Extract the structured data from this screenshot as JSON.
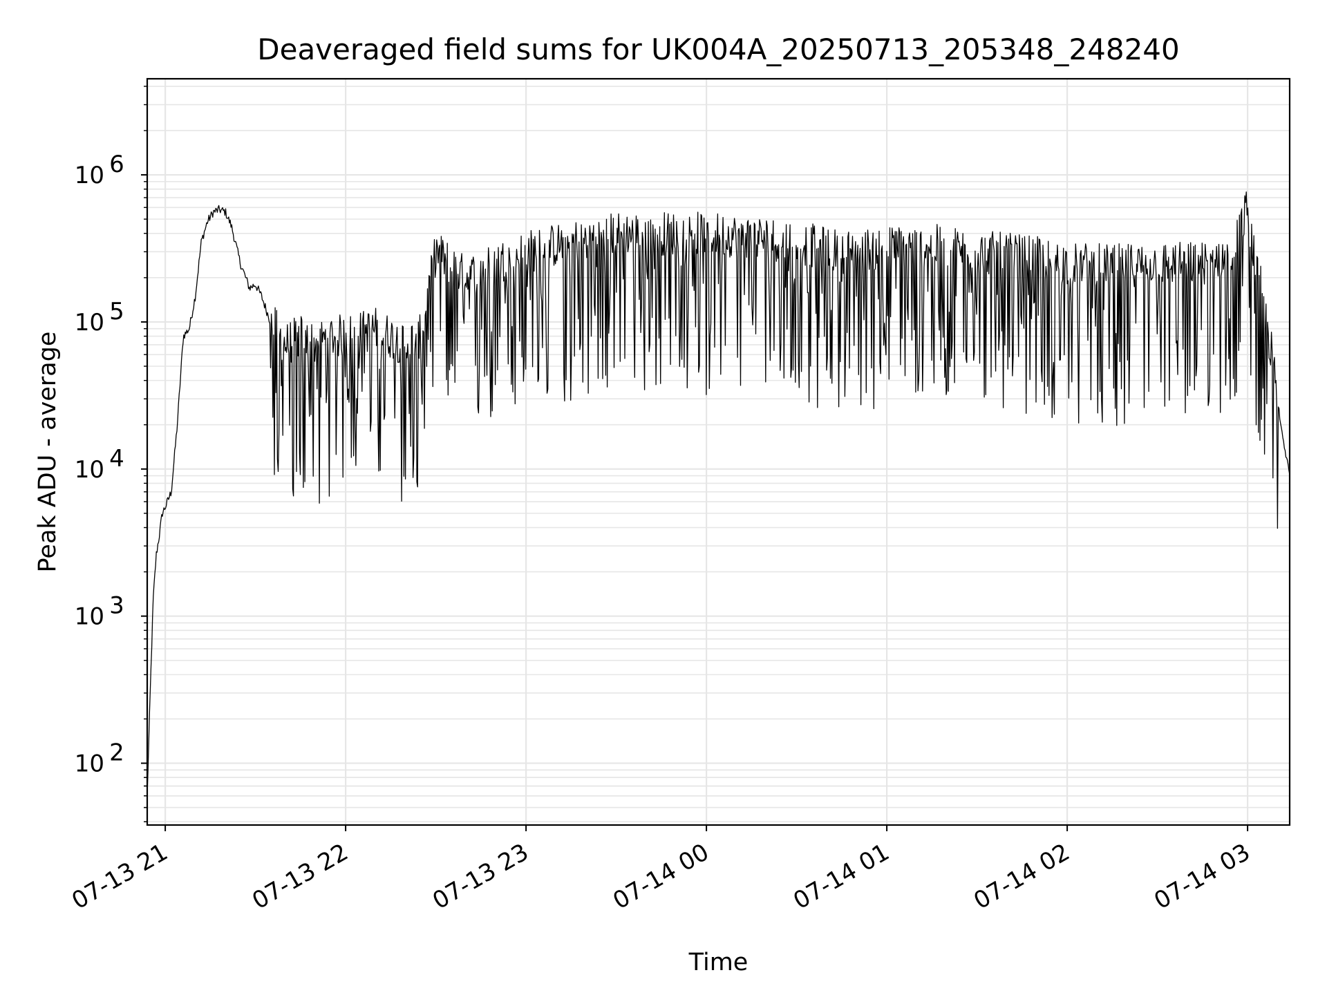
{
  "chart_data": {
    "type": "line",
    "title": "Deaveraged field sums for UK004A_20250713_205348_248240",
    "xlabel": "Time",
    "ylabel": "Peak ADU - average",
    "yscale": "log",
    "ylim": [
      38,
      4500000
    ],
    "xlim": [
      "2025-07-13 20:54",
      "2025-07-14 03:14"
    ],
    "grid": true,
    "grid_color": "#e6e6e6",
    "line_color": "#000000",
    "x_ticks": [
      {
        "value": "2025-07-13 21:00",
        "label": "07-13 21"
      },
      {
        "value": "2025-07-13 22:00",
        "label": "07-13 22"
      },
      {
        "value": "2025-07-13 23:00",
        "label": "07-13 23"
      },
      {
        "value": "2025-07-14 00:00",
        "label": "07-14 00"
      },
      {
        "value": "2025-07-14 01:00",
        "label": "07-14 01"
      },
      {
        "value": "2025-07-14 02:00",
        "label": "07-14 02"
      },
      {
        "value": "2025-07-14 03:00",
        "label": "07-14 03"
      }
    ],
    "y_ticks": [
      {
        "value": 100,
        "base": "10",
        "exp": "2"
      },
      {
        "value": 1000,
        "base": "10",
        "exp": "3"
      },
      {
        "value": 10000,
        "base": "10",
        "exp": "4"
      },
      {
        "value": 100000,
        "base": "10",
        "exp": "5"
      },
      {
        "value": 1000000,
        "base": "10",
        "exp": "6"
      }
    ],
    "series": [
      {
        "x": [
          "2025-07-13 20:54",
          "2025-07-13 20:55",
          "2025-07-13 20:56",
          "2025-07-13 20:57",
          "2025-07-13 20:58",
          "2025-07-13 20:59",
          "2025-07-13 21:00",
          "2025-07-13 21:02",
          "2025-07-13 21:04",
          "2025-07-13 21:06",
          "2025-07-13 21:08",
          "2025-07-13 21:10",
          "2025-07-13 21:12",
          "2025-07-13 21:14",
          "2025-07-13 21:16",
          "2025-07-13 21:18",
          "2025-07-13 21:20",
          "2025-07-13 21:22",
          "2025-07-13 21:25",
          "2025-07-13 21:28",
          "2025-07-13 21:30",
          "2025-07-13 21:32",
          "2025-07-13 21:35",
          "2025-07-13 21:40",
          "2025-07-13 21:45",
          "2025-07-13 21:50",
          "2025-07-13 21:55",
          "2025-07-13 22:00",
          "2025-07-13 22:10",
          "2025-07-13 22:20",
          "2025-07-13 22:25",
          "2025-07-13 22:30",
          "2025-07-13 22:40",
          "2025-07-13 22:50",
          "2025-07-13 23:00",
          "2025-07-13 23:15",
          "2025-07-13 23:30",
          "2025-07-13 23:45",
          "2025-07-14 00:00",
          "2025-07-14 00:15",
          "2025-07-14 00:30",
          "2025-07-14 00:45",
          "2025-07-14 01:00",
          "2025-07-14 01:15",
          "2025-07-14 01:30",
          "2025-07-14 01:45",
          "2025-07-14 02:00",
          "2025-07-14 02:15",
          "2025-07-14 02:30",
          "2025-07-14 02:45",
          "2025-07-14 02:55",
          "2025-07-14 03:00",
          "2025-07-14 03:02",
          "2025-07-14 03:05",
          "2025-07-14 03:08",
          "2025-07-14 03:11",
          "2025-07-14 03:14"
        ],
        "y": [
          60,
          300,
          1300,
          2600,
          3500,
          5000,
          5500,
          7000,
          20000,
          80000,
          90000,
          150000,
          350000,
          480000,
          560000,
          580000,
          560000,
          450000,
          250000,
          170000,
          180000,
          150000,
          100000,
          70000,
          80000,
          70000,
          80000,
          80000,
          90000,
          70000,
          80000,
          300000,
          200000,
          250000,
          300000,
          350000,
          400000,
          400000,
          400000,
          380000,
          350000,
          300000,
          320000,
          330000,
          300000,
          280000,
          250000,
          240000,
          250000,
          250000,
          300000,
          600000,
          300000,
          150000,
          60000,
          20000,
          9000
        ]
      }
    ]
  }
}
